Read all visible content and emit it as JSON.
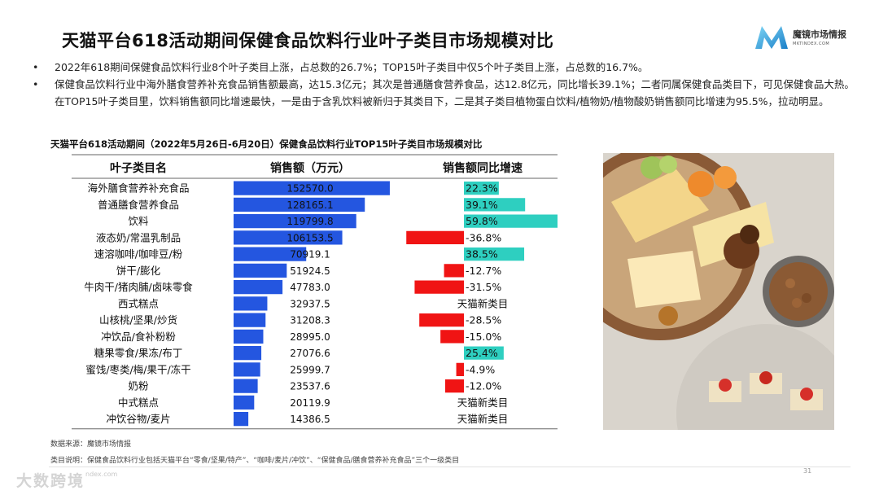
{
  "title": "天猫平台618活动期间保健食品饮料行业叶子类目市场规模对比",
  "logo": {
    "name": "魔镜市场情报",
    "sub": "MKTINDEX.COM"
  },
  "bullets": [
    "2022年618期间保健食品饮料行业8个叶子类目上涨，占总数的26.7%；TOP15叶子类目中仅5个叶子类目上涨，占总数的16.7%。",
    "保健食品饮料行业中海外膳食营养补充食品销售额最高，达15.3亿元；其次是普通膳食营养食品，达12.8亿元，同比增长39.1%；二者同属保健食品类目下，可见保健食品大热。在TOP15叶子类目里，饮料销售额同比增速最快，一是由于含乳饮料被新归于其类目下，二是其子类目植物蛋白饮料/植物奶/植物酸奶销售额同比增速为95.5%，拉动明显。"
  ],
  "chart_title": "天猫平台618活动期间（2022年5月26日-6月20日）保健食品饮料行业TOP15叶子类目市场规模对比",
  "colors": {
    "sales": "#2456E0",
    "growth_up": "#2ECFC0",
    "growth_down": "#F01414"
  },
  "chart_data": {
    "type": "table",
    "columns": [
      "叶子类目名",
      "销售额（万元）",
      "销售额同比增速"
    ],
    "rows": [
      {
        "category": "海外膳食营养补充食品",
        "sales": 152570.0,
        "sales_label": "152570.0",
        "growth": 22.3,
        "growth_label": "22.3%"
      },
      {
        "category": "普通膳食营养食品",
        "sales": 128165.1,
        "sales_label": "128165.1",
        "growth": 39.1,
        "growth_label": "39.1%"
      },
      {
        "category": "饮料",
        "sales": 119799.8,
        "sales_label": "119799.8",
        "growth": 59.8,
        "growth_label": "59.8%"
      },
      {
        "category": "液态奶/常温乳制品",
        "sales": 106153.5,
        "sales_label": "106153.5",
        "growth": -36.8,
        "growth_label": "-36.8%"
      },
      {
        "category": "速溶咖啡/咖啡豆/粉",
        "sales": 70919.1,
        "sales_label": "70919.1",
        "growth": 38.5,
        "growth_label": "38.5%"
      },
      {
        "category": "饼干/膨化",
        "sales": 51924.5,
        "sales_label": "51924.5",
        "growth": -12.7,
        "growth_label": "-12.7%"
      },
      {
        "category": "牛肉干/猪肉脯/卤味零食",
        "sales": 47783.0,
        "sales_label": "47783.0",
        "growth": -31.5,
        "growth_label": "-31.5%"
      },
      {
        "category": "西式糕点",
        "sales": 32937.5,
        "sales_label": "32937.5",
        "growth": null,
        "growth_label": "天猫新类目"
      },
      {
        "category": "山核桃/坚果/炒货",
        "sales": 31208.3,
        "sales_label": "31208.3",
        "growth": -28.5,
        "growth_label": "-28.5%"
      },
      {
        "category": "冲饮品/食补粉粉",
        "sales": 28995.0,
        "sales_label": "28995.0",
        "growth": -15.0,
        "growth_label": "-15.0%"
      },
      {
        "category": "糖果零食/果冻/布丁",
        "sales": 27076.6,
        "sales_label": "27076.6",
        "growth": 25.4,
        "growth_label": "25.4%"
      },
      {
        "category": "蜜饯/枣类/梅/果干/冻干",
        "sales": 25999.7,
        "sales_label": "25999.7",
        "growth": -4.9,
        "growth_label": "-4.9%"
      },
      {
        "category": "奶粉",
        "sales": 23537.6,
        "sales_label": "23537.6",
        "growth": -12.0,
        "growth_label": "-12.0%"
      },
      {
        "category": "中式糕点",
        "sales": 20119.9,
        "sales_label": "20119.9",
        "growth": null,
        "growth_label": "天猫新类目"
      },
      {
        "category": "冲饮谷物/麦片",
        "sales": 14386.5,
        "sales_label": "14386.5",
        "growth": null,
        "growth_label": "天猫新类目"
      }
    ]
  },
  "footnotes": {
    "source": "数据来源：魔镜市场情报",
    "note": "类目说明：保健食品饮料行业包括天猫平台“零食/坚果/特产”、“咖啡/麦片/冲饮”、“保健食品/膳食营养补充食品”三个一级类目"
  },
  "footer": {
    "site": "ndex.com",
    "page": "31",
    "watermark": "大数跨境"
  }
}
